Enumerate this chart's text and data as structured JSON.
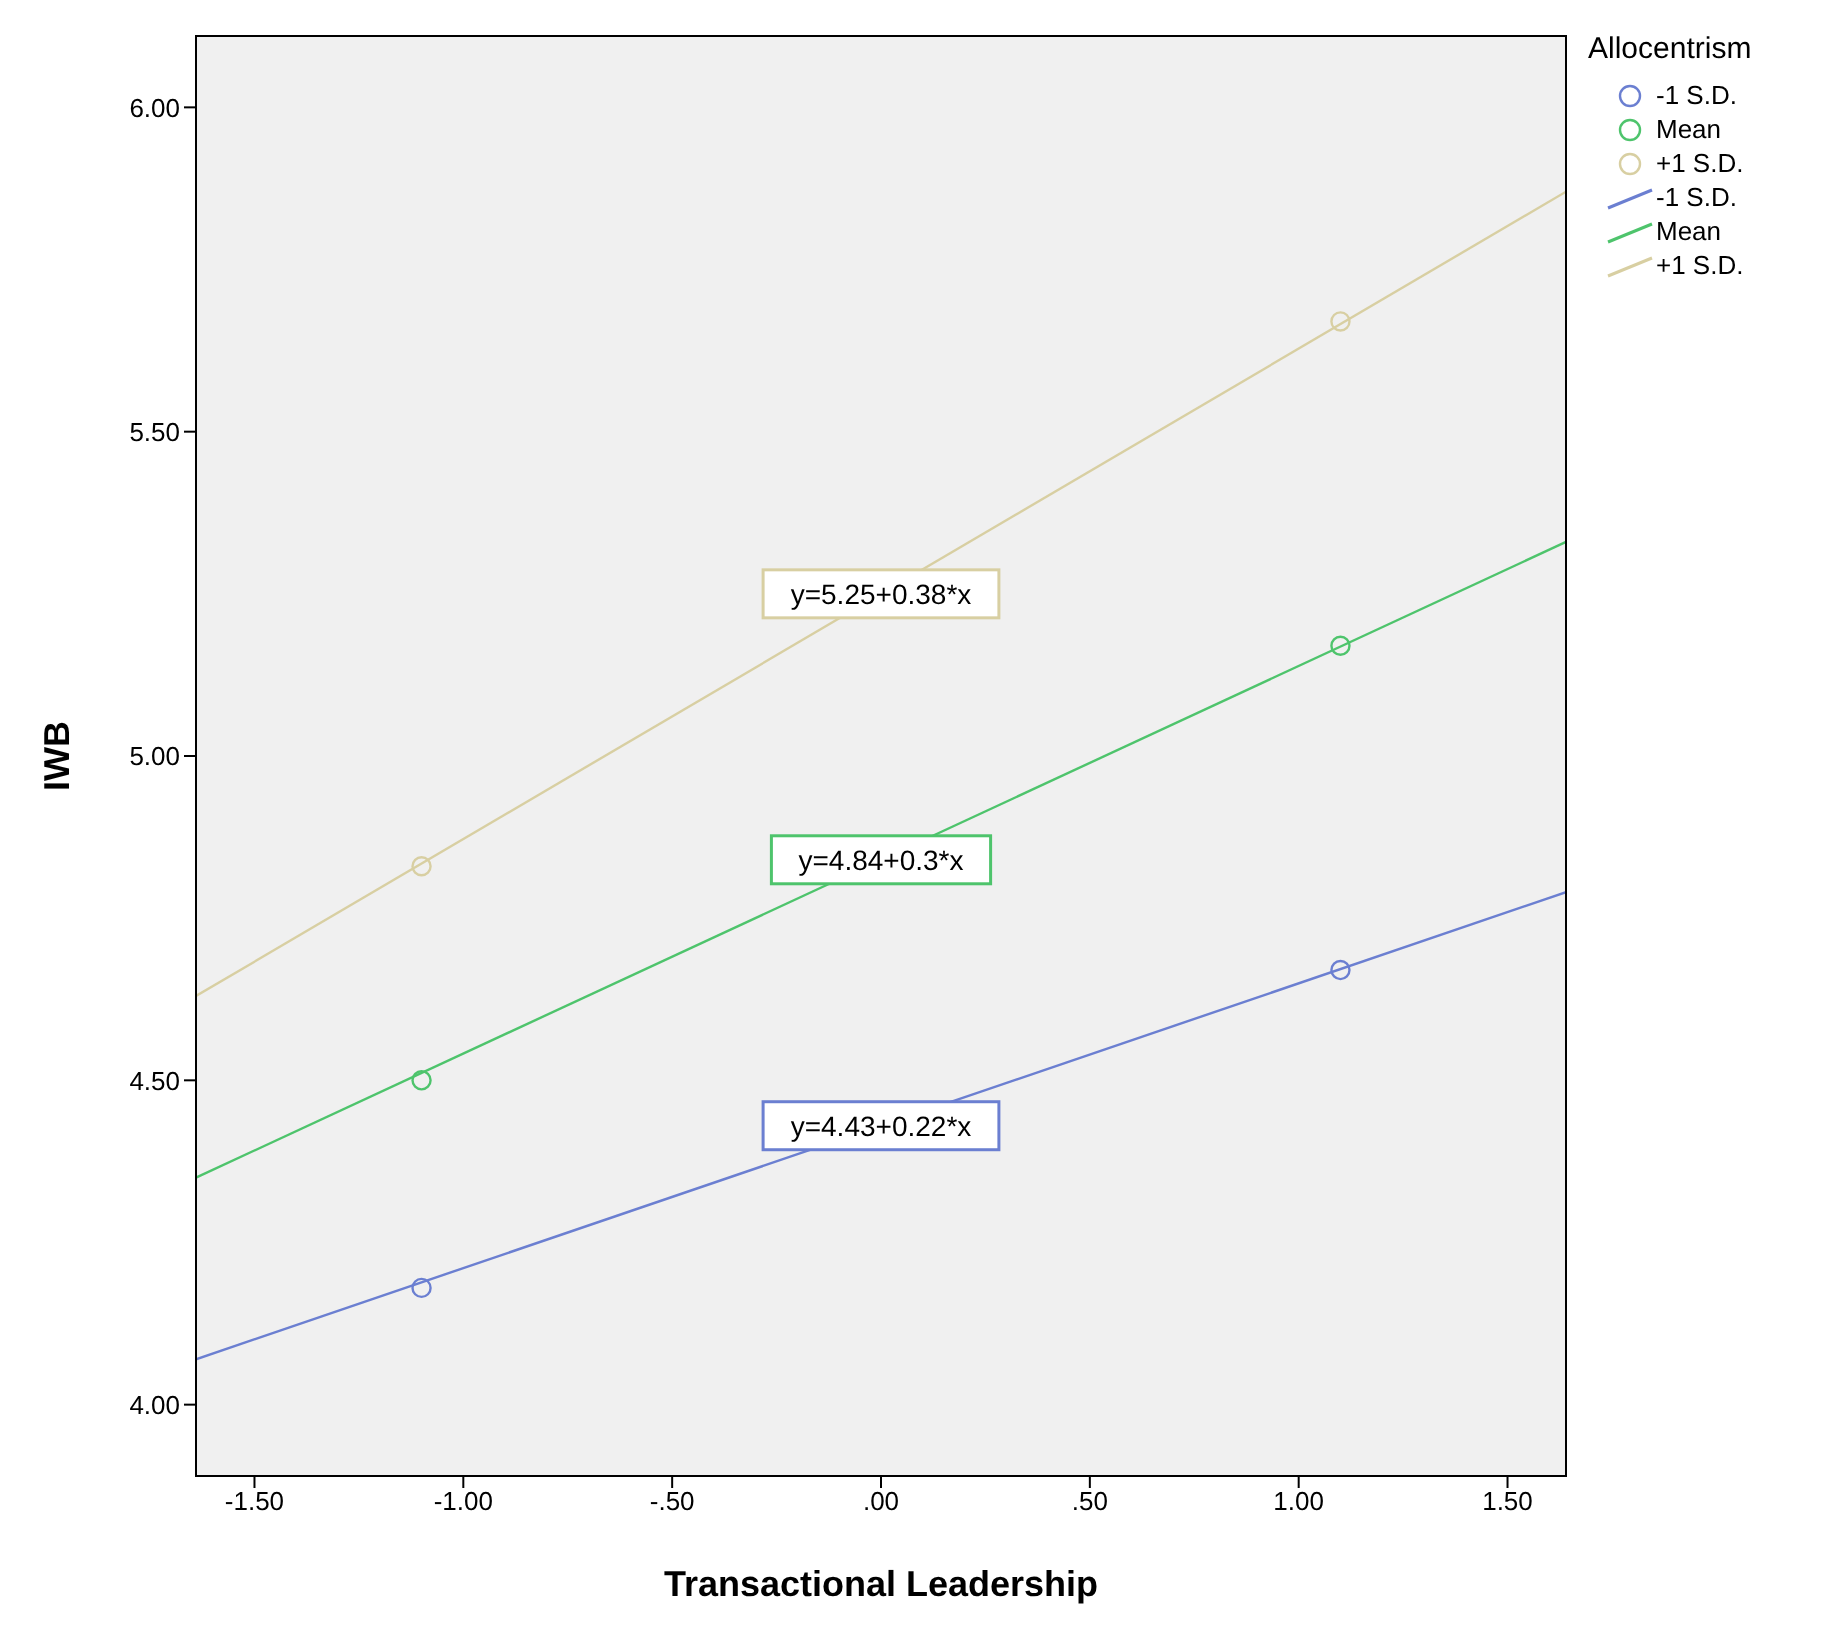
{
  "chart_data": {
    "type": "scatter",
    "xlabel": "Transactional Leadership",
    "ylabel": "IWB",
    "legend_title": "Allocentrism",
    "legend": "right",
    "grid": false,
    "xlim": [
      -1.64,
      1.64
    ],
    "ylim": [
      3.89,
      6.11
    ],
    "xticks": [
      {
        "value": -1.5,
        "label": "-1.50"
      },
      {
        "value": -1,
        "label": "-1.00"
      },
      {
        "value": -0.5,
        "label": "-.50"
      },
      {
        "value": 0,
        "label": ".00"
      },
      {
        "value": 0.5,
        "label": ".50"
      },
      {
        "value": 1,
        "label": "1.00"
      },
      {
        "value": 1.5,
        "label": "1.50"
      }
    ],
    "yticks": [
      {
        "value": 4,
        "label": "4.00"
      },
      {
        "value": 4.5,
        "label": "4.50"
      },
      {
        "value": 5,
        "label": "5.00"
      },
      {
        "value": 5.5,
        "label": "5.50"
      },
      {
        "value": 6,
        "label": "6.00"
      }
    ],
    "series": [
      {
        "name": "-1 S.D.",
        "marker": "circle",
        "color": "#6b7fd1",
        "x": [
          -1.1,
          1.1
        ],
        "values": [
          4.18,
          4.67
        ]
      },
      {
        "name": "Mean",
        "marker": "circle",
        "color": "#4ec46c",
        "x": [
          -1.1,
          1.1
        ],
        "values": [
          4.5,
          5.17
        ]
      },
      {
        "name": "+1 S.D.",
        "marker": "circle",
        "color": "#d8cfa2",
        "x": [
          -1.1,
          1.1
        ],
        "values": [
          4.83,
          5.67
        ]
      },
      {
        "name": "-1 S.D.",
        "type": "line",
        "marker": "none",
        "color": "#6b7fd1",
        "x": [
          -1.64,
          1.64
        ],
        "values": [
          4.07,
          4.79
        ]
      },
      {
        "name": "Mean",
        "type": "line",
        "marker": "none",
        "color": "#4ec46c",
        "x": [
          -1.64,
          1.64
        ],
        "values": [
          4.35,
          5.33
        ]
      },
      {
        "name": "+1 S.D.",
        "type": "line",
        "marker": "none",
        "color": "#d8cfa2",
        "x": [
          -1.64,
          1.64
        ],
        "values": [
          4.63,
          5.87
        ]
      }
    ],
    "annotations": [
      "y=4.43+0.22*x",
      "y=4.84+0.3*x",
      "y=5.25+0.38*x"
    ]
  }
}
